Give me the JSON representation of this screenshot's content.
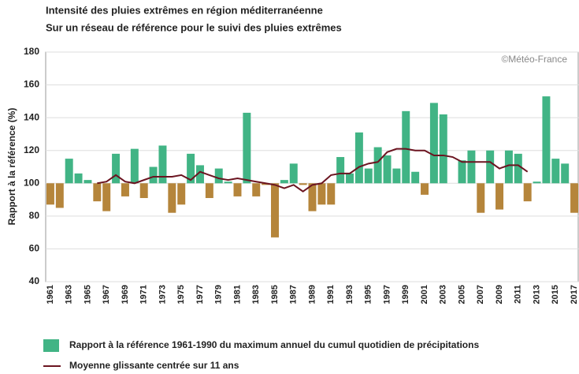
{
  "chart_data": {
    "type": "bar",
    "title": "Intensité des pluies extrêmes en région méditerranéenne",
    "subtitle": "Sur un réseau de référence pour le suivi des pluies extrêmes",
    "y_label": "Rapport à la référence (%)",
    "annotation": "©Météo-France",
    "categories": [
      "1961",
      null,
      "1963",
      null,
      "1965",
      null,
      "1967",
      null,
      "1969",
      null,
      "1971",
      null,
      "1973",
      null,
      "1975",
      null,
      "1977",
      null,
      "1979",
      null,
      "1981",
      null,
      "1983",
      null,
      "1985",
      null,
      "1987",
      null,
      "1989",
      null,
      "1991",
      null,
      "1993",
      null,
      "1995",
      null,
      "1997",
      null,
      "1999",
      null,
      "2001",
      null,
      "2003",
      null,
      "2005",
      null,
      "2007",
      null,
      "2009",
      null,
      "2011",
      null,
      "2013",
      null,
      "2015",
      null,
      "2017"
    ],
    "bar_base": 100,
    "series": [
      {
        "name": "Rapport à la référence 1961-1990 du maximum annuel du cumul quotidien de précipitations",
        "type": "bar",
        "color": "#41b485",
        "below_color": "#b5853b",
        "values": [
          87,
          85,
          115,
          106,
          102,
          89,
          83,
          118,
          92,
          121,
          91,
          110,
          123,
          82,
          87,
          118,
          111,
          91,
          109,
          101,
          92,
          143,
          92,
          99,
          67,
          102,
          112,
          99,
          83,
          87,
          87,
          116,
          106,
          131,
          109,
          122,
          117,
          109,
          144,
          107,
          93,
          149,
          142,
          100,
          114,
          120,
          82,
          120,
          84,
          120,
          118,
          89,
          101,
          153,
          115,
          112,
          82
        ]
      },
      {
        "name": "Moyenne glissante centrée sur 11 ans",
        "type": "line",
        "color": "#6b1420",
        "values": [
          null,
          null,
          null,
          null,
          null,
          100,
          101,
          105,
          101,
          100,
          102,
          104,
          104,
          104,
          105,
          102,
          107,
          105,
          103,
          102,
          103,
          102,
          101,
          100,
          99,
          97,
          99,
          95,
          99,
          100,
          105,
          106,
          106,
          110,
          112,
          113,
          119,
          121,
          121,
          120,
          120,
          117,
          117,
          116,
          113,
          113,
          113,
          113,
          109,
          111,
          111,
          107,
          null,
          null,
          null,
          null,
          null
        ]
      }
    ],
    "ylim": [
      40,
      180
    ],
    "yticks": [
      40,
      60,
      80,
      100,
      120,
      140,
      160,
      180
    ],
    "grid": true
  }
}
